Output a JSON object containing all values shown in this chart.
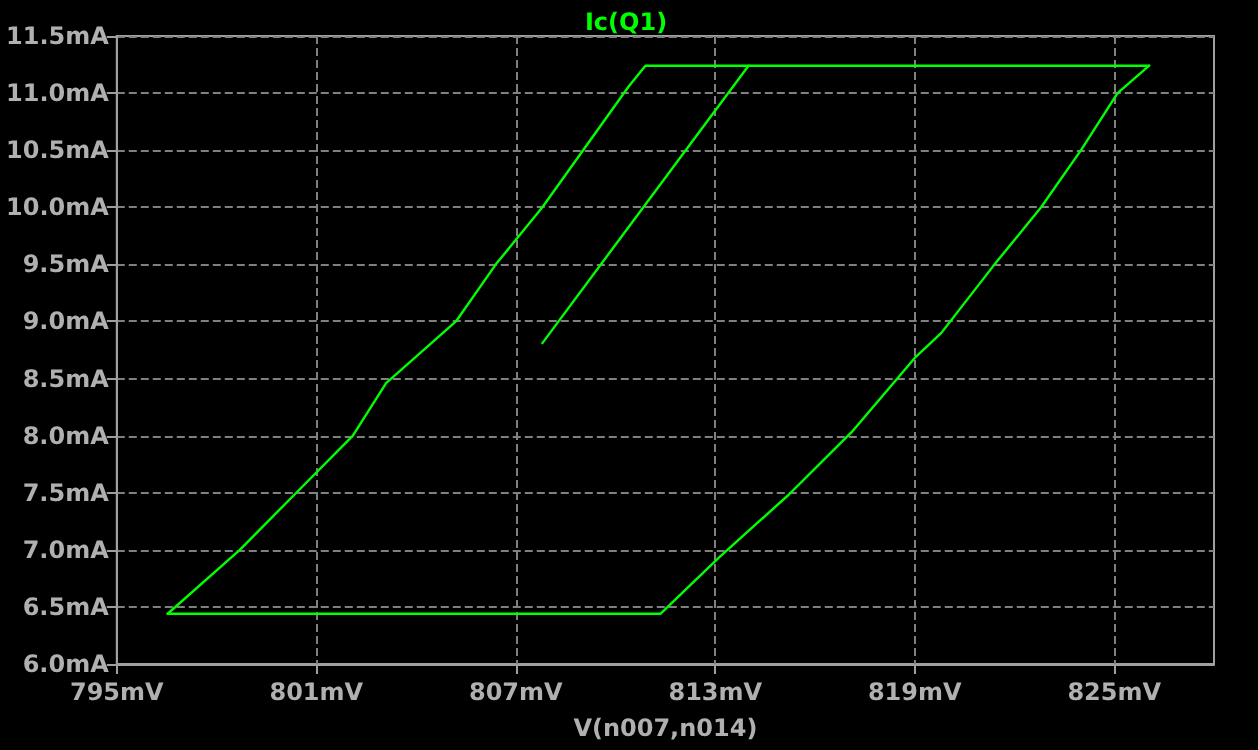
{
  "chart_data": {
    "type": "line",
    "title": "Ic(Q1)",
    "xlabel": "V(n007,n014)",
    "xlim": [
      795,
      828
    ],
    "ylim": [
      6.0,
      11.5
    ],
    "xticks": [
      {
        "value": 795,
        "label": "795mV"
      },
      {
        "value": 801,
        "label": "801mV"
      },
      {
        "value": 807,
        "label": "807mV"
      },
      {
        "value": 813,
        "label": "813mV"
      },
      {
        "value": 819,
        "label": "819mV"
      },
      {
        "value": 825,
        "label": "825mV"
      }
    ],
    "yticks": [
      {
        "value": 6.0,
        "label": "6.0mA"
      },
      {
        "value": 6.5,
        "label": "6.5mA"
      },
      {
        "value": 7.0,
        "label": "7.0mA"
      },
      {
        "value": 7.5,
        "label": "7.5mA"
      },
      {
        "value": 8.0,
        "label": "8.0mA"
      },
      {
        "value": 8.5,
        "label": "8.5mA"
      },
      {
        "value": 9.0,
        "label": "9.0mA"
      },
      {
        "value": 9.5,
        "label": "9.5mA"
      },
      {
        "value": 10.0,
        "label": "10.0mA"
      },
      {
        "value": 10.5,
        "label": "10.5mA"
      },
      {
        "value": 11.0,
        "label": "11.0mA"
      },
      {
        "value": 11.5,
        "label": "11.5mA"
      }
    ],
    "grid": true,
    "marker": "none",
    "line_style": "solid",
    "series": [
      {
        "color": "#00ff00",
        "x": [
          796.53,
          798.7,
          800.4,
          802.1,
          803.1,
          805.2,
          806.4,
          807.8,
          810.4,
          810.9,
          826.05
        ],
        "values": [
          6.44,
          7.0,
          7.5,
          8.0,
          8.46,
          9.0,
          9.5,
          10.0,
          11.06,
          11.24,
          11.24
        ]
      },
      {
        "color": "#00ff00",
        "x": [
          826.05,
          825.1,
          824.0,
          822.8,
          821.4,
          819.8,
          819.0,
          817.1,
          815.2,
          813.1,
          811.35,
          796.53
        ],
        "values": [
          11.24,
          11.0,
          10.5,
          10.0,
          9.5,
          8.9,
          8.68,
          8.03,
          7.48,
          6.93,
          6.44,
          6.44
        ]
      },
      {
        "color": "#00ff00",
        "x": [
          807.8,
          814.0
        ],
        "values": [
          8.81,
          11.24
        ]
      }
    ]
  }
}
